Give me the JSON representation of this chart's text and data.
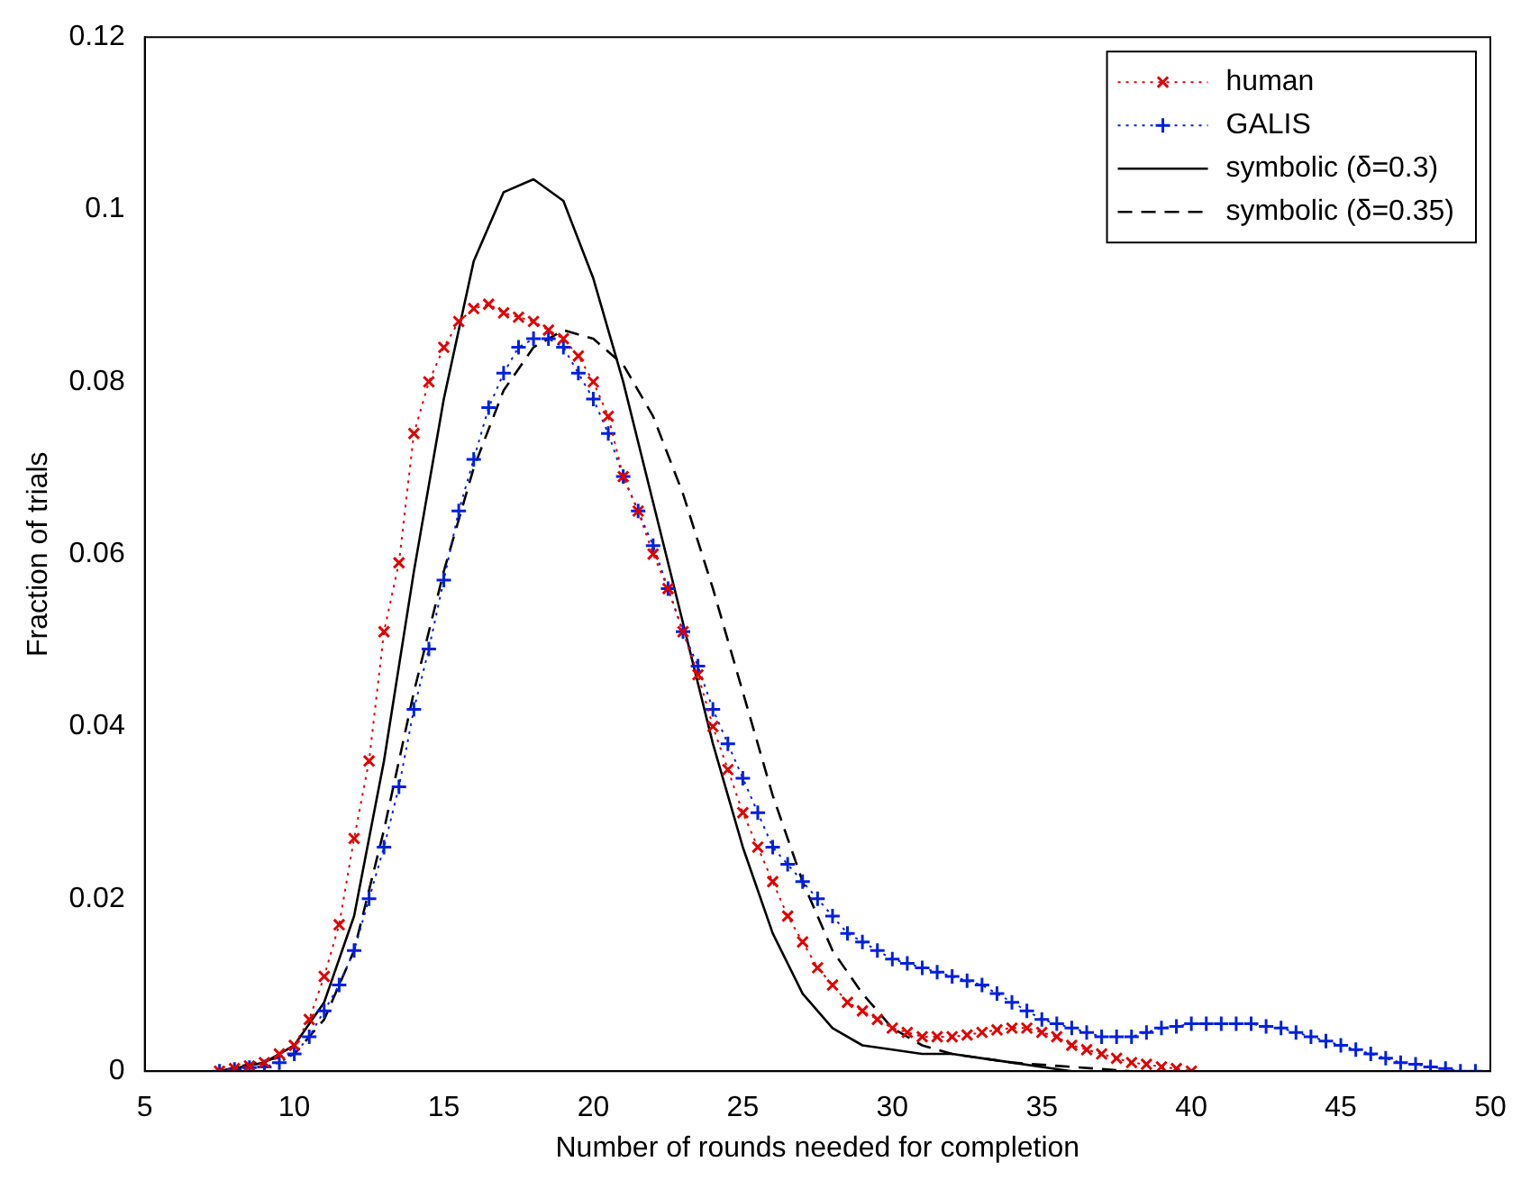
{
  "chart_data": {
    "type": "line",
    "xlabel": "Number of rounds needed for completion",
    "ylabel": "Fraction of trials",
    "xlim": [
      5,
      50
    ],
    "xticks": [
      5,
      10,
      15,
      20,
      25,
      30,
      35,
      40,
      45,
      50
    ],
    "ylim": [
      0,
      0.12
    ],
    "yticks": [
      0,
      0.02,
      0.04,
      0.06,
      0.08,
      0.1,
      0.12
    ],
    "grid": false,
    "legend": "top right",
    "series": [
      {
        "name": "human",
        "color": "#e00000",
        "marker": "x",
        "line_style": "dotted",
        "x": [
          7.5,
          8,
          8.5,
          9,
          9.5,
          10,
          10.5,
          11,
          11.5,
          12,
          12.5,
          13,
          13.5,
          14,
          14.5,
          15,
          15.5,
          16,
          16.5,
          17,
          17.5,
          18,
          18.5,
          19,
          19.5,
          20,
          20.5,
          21,
          21.5,
          22,
          22.5,
          23,
          23.5,
          24,
          24.5,
          25,
          25.5,
          26,
          26.5,
          27,
          27.5,
          28,
          28.5,
          29,
          29.5,
          30,
          30.5,
          31,
          31.5,
          32,
          32.5,
          33,
          33.5,
          34,
          34.5,
          35,
          35.5,
          36,
          36.5,
          37,
          37.5,
          38,
          38.5,
          39,
          39.5,
          40
        ],
        "values": [
          0,
          0.0003,
          0.0006,
          0.001,
          0.002,
          0.003,
          0.006,
          0.011,
          0.017,
          0.027,
          0.036,
          0.051,
          0.059,
          0.074,
          0.08,
          0.084,
          0.087,
          0.0885,
          0.089,
          0.088,
          0.0875,
          0.087,
          0.086,
          0.085,
          0.083,
          0.08,
          0.076,
          0.069,
          0.065,
          0.06,
          0.056,
          0.051,
          0.046,
          0.04,
          0.035,
          0.03,
          0.026,
          0.022,
          0.018,
          0.015,
          0.012,
          0.01,
          0.008,
          0.007,
          0.006,
          0.005,
          0.0045,
          0.004,
          0.004,
          0.004,
          0.0042,
          0.0045,
          0.0048,
          0.005,
          0.005,
          0.0045,
          0.004,
          0.003,
          0.0025,
          0.002,
          0.0015,
          0.001,
          0.0008,
          0.0005,
          0.0003,
          0
        ]
      },
      {
        "name": "GALIS",
        "color": "#0020e0",
        "marker": "cross",
        "line_style": "dotted",
        "x": [
          7.5,
          8,
          8.5,
          9,
          9.5,
          10,
          10.5,
          11,
          11.5,
          12,
          12.5,
          13,
          13.5,
          14,
          14.5,
          15,
          15.5,
          16,
          16.5,
          17,
          17.5,
          18,
          18.5,
          19,
          19.5,
          20,
          20.5,
          21,
          21.5,
          22,
          22.5,
          23,
          23.5,
          24,
          24.5,
          25,
          25.5,
          26,
          26.5,
          27,
          27.5,
          28,
          28.5,
          29,
          29.5,
          30,
          30.5,
          31,
          31.5,
          32,
          32.5,
          33,
          33.5,
          34,
          34.5,
          35,
          35.5,
          36,
          36.5,
          37,
          37.5,
          38,
          38.5,
          39,
          39.5,
          40,
          40.5,
          41,
          41.5,
          42,
          42.5,
          43,
          43.5,
          44,
          44.5,
          45,
          45.5,
          46,
          46.5,
          47,
          47.5,
          48,
          48.5,
          49,
          49.5
        ],
        "values": [
          0,
          0.0002,
          0.0004,
          0.0005,
          0.001,
          0.002,
          0.004,
          0.007,
          0.01,
          0.014,
          0.02,
          0.026,
          0.033,
          0.042,
          0.049,
          0.057,
          0.065,
          0.071,
          0.077,
          0.081,
          0.084,
          0.085,
          0.085,
          0.084,
          0.081,
          0.078,
          0.074,
          0.069,
          0.065,
          0.061,
          0.056,
          0.051,
          0.047,
          0.042,
          0.038,
          0.034,
          0.03,
          0.026,
          0.024,
          0.022,
          0.02,
          0.018,
          0.016,
          0.015,
          0.014,
          0.013,
          0.0125,
          0.012,
          0.0115,
          0.011,
          0.0105,
          0.01,
          0.009,
          0.008,
          0.007,
          0.006,
          0.0055,
          0.005,
          0.0045,
          0.004,
          0.004,
          0.004,
          0.0045,
          0.005,
          0.0052,
          0.0055,
          0.0055,
          0.0055,
          0.0055,
          0.0055,
          0.0052,
          0.005,
          0.0045,
          0.004,
          0.0035,
          0.003,
          0.0025,
          0.002,
          0.0015,
          0.001,
          0.0008,
          0.0005,
          0.0003,
          0,
          0
        ]
      },
      {
        "name": "symbolic (δ=0.3)",
        "color": "#000000",
        "marker": "none",
        "line_style": "solid",
        "x": [
          7.5,
          9,
          10,
          11,
          12,
          13,
          14,
          15,
          16,
          17,
          18,
          19,
          20,
          21,
          22,
          23,
          24,
          25,
          26,
          27,
          28,
          29,
          30,
          31,
          32,
          33,
          34,
          35,
          36,
          40
        ],
        "values": [
          0,
          0.001,
          0.003,
          0.008,
          0.018,
          0.036,
          0.058,
          0.078,
          0.094,
          0.102,
          0.1035,
          0.101,
          0.092,
          0.08,
          0.066,
          0.052,
          0.038,
          0.026,
          0.016,
          0.009,
          0.005,
          0.003,
          0.0025,
          0.002,
          0.002,
          0.0015,
          0.001,
          0.0005,
          0,
          0
        ]
      },
      {
        "name": "symbolic (δ=0.35)",
        "color": "#000000",
        "marker": "none",
        "line_style": "dashed",
        "x": [
          7.5,
          10,
          11,
          12,
          13,
          14,
          15,
          16,
          17,
          18,
          19,
          20,
          21,
          22,
          23,
          24,
          25,
          26,
          27,
          28,
          29,
          30,
          31,
          32,
          34,
          36,
          38,
          40
        ],
        "values": [
          0,
          0.002,
          0.006,
          0.014,
          0.028,
          0.044,
          0.058,
          0.07,
          0.079,
          0.084,
          0.086,
          0.085,
          0.082,
          0.076,
          0.067,
          0.056,
          0.044,
          0.032,
          0.022,
          0.014,
          0.009,
          0.005,
          0.003,
          0.002,
          0.001,
          0.0005,
          0,
          0
        ]
      }
    ]
  }
}
